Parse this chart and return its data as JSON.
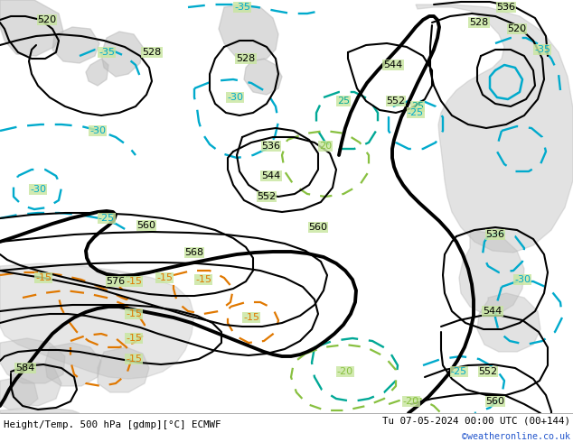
{
  "title_left": "Height/Temp. 500 hPa [gdmp][°C] ECMWF",
  "title_right": "Tu 07-05-2024 00:00 UTC (00+144)",
  "watermark": "©weatheronline.co.uk",
  "bg_green": "#c8e6a0",
  "land_gray": "#b8b8b8",
  "black": "#000000",
  "cyan_blue": "#00aacc",
  "teal": "#00a896",
  "lime_green": "#88c040",
  "orange": "#e07800",
  "blue_link": "#2255cc",
  "white": "#ffffff",
  "figsize": [
    6.34,
    4.9
  ],
  "dpi": 100
}
